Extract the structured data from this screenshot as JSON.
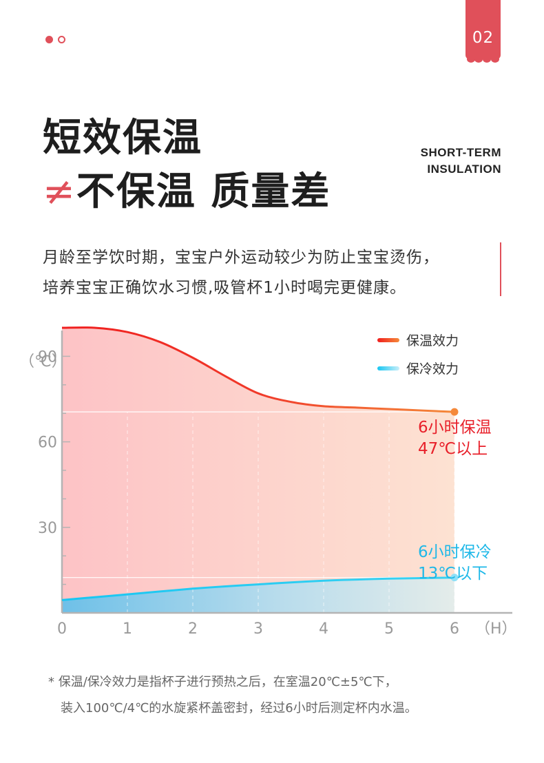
{
  "header": {
    "page_number": "02",
    "title_line1": "短效保温",
    "title_line2_symbol": "≠",
    "title_line2_text": "不保温 质量差",
    "english_title_line1": "SHORT-TERM",
    "english_title_line2": "INSULATION"
  },
  "description": {
    "line1": "月龄至学饮时期，宝宝户外运动较少为防止宝宝烫伤，",
    "line2": "培养宝宝正确饮水习惯,吸管杯1小时喝完更健康。"
  },
  "footnote": {
    "line1": "* 保温/保冷效力是指杯子进行预热之后，在室温20℃±5℃下，",
    "line2": "装入100℃/4℃的水旋紧杯盖密封，经过6小时后测定杯内水温。"
  },
  "colors": {
    "accent": "#e0505a",
    "warm_line_start": "#f01e1e",
    "warm_line_end": "#f58a35",
    "cold_line": "#1ec8f0",
    "warm_fill": "#fdc8c8",
    "cold_fill": "#7cc6e6"
  },
  "chart_data": {
    "type": "line",
    "ylabel": "（℃）",
    "xlabel": "（H）",
    "x_ticks": [
      "0",
      "1",
      "2",
      "3",
      "4",
      "5",
      "6"
    ],
    "y_ticks": [
      "30",
      "60",
      "90"
    ],
    "xlim": [
      0,
      6
    ],
    "ylim": [
      0,
      100
    ],
    "legend_position": "top-right",
    "series": [
      {
        "name": "保温效力",
        "x": [
          0,
          0.5,
          1,
          1.5,
          2,
          2.5,
          3,
          3.5,
          4,
          4.5,
          5,
          5.5,
          6
        ],
        "y": [
          100,
          100,
          98.5,
          95,
          89.5,
          83,
          77,
          74,
          72.5,
          72,
          71.5,
          71,
          70.5
        ]
      },
      {
        "name": "保冷效力",
        "x": [
          0,
          0.5,
          1,
          1.5,
          2,
          2.5,
          3,
          3.5,
          4,
          4.5,
          5,
          5.5,
          6
        ],
        "y": [
          4.5,
          5.5,
          6.5,
          7.5,
          8.5,
          9.3,
          10,
          10.7,
          11.3,
          11.7,
          12,
          12.2,
          12.4
        ]
      }
    ],
    "annotations": [
      {
        "series": "保温效力",
        "line1": "6小时保温",
        "line2": "47℃以上",
        "color": "#e8202a"
      },
      {
        "series": "保冷效力",
        "line1": "6小时保冷",
        "line2": "13℃以下",
        "color": "#1eb8e8"
      }
    ]
  }
}
